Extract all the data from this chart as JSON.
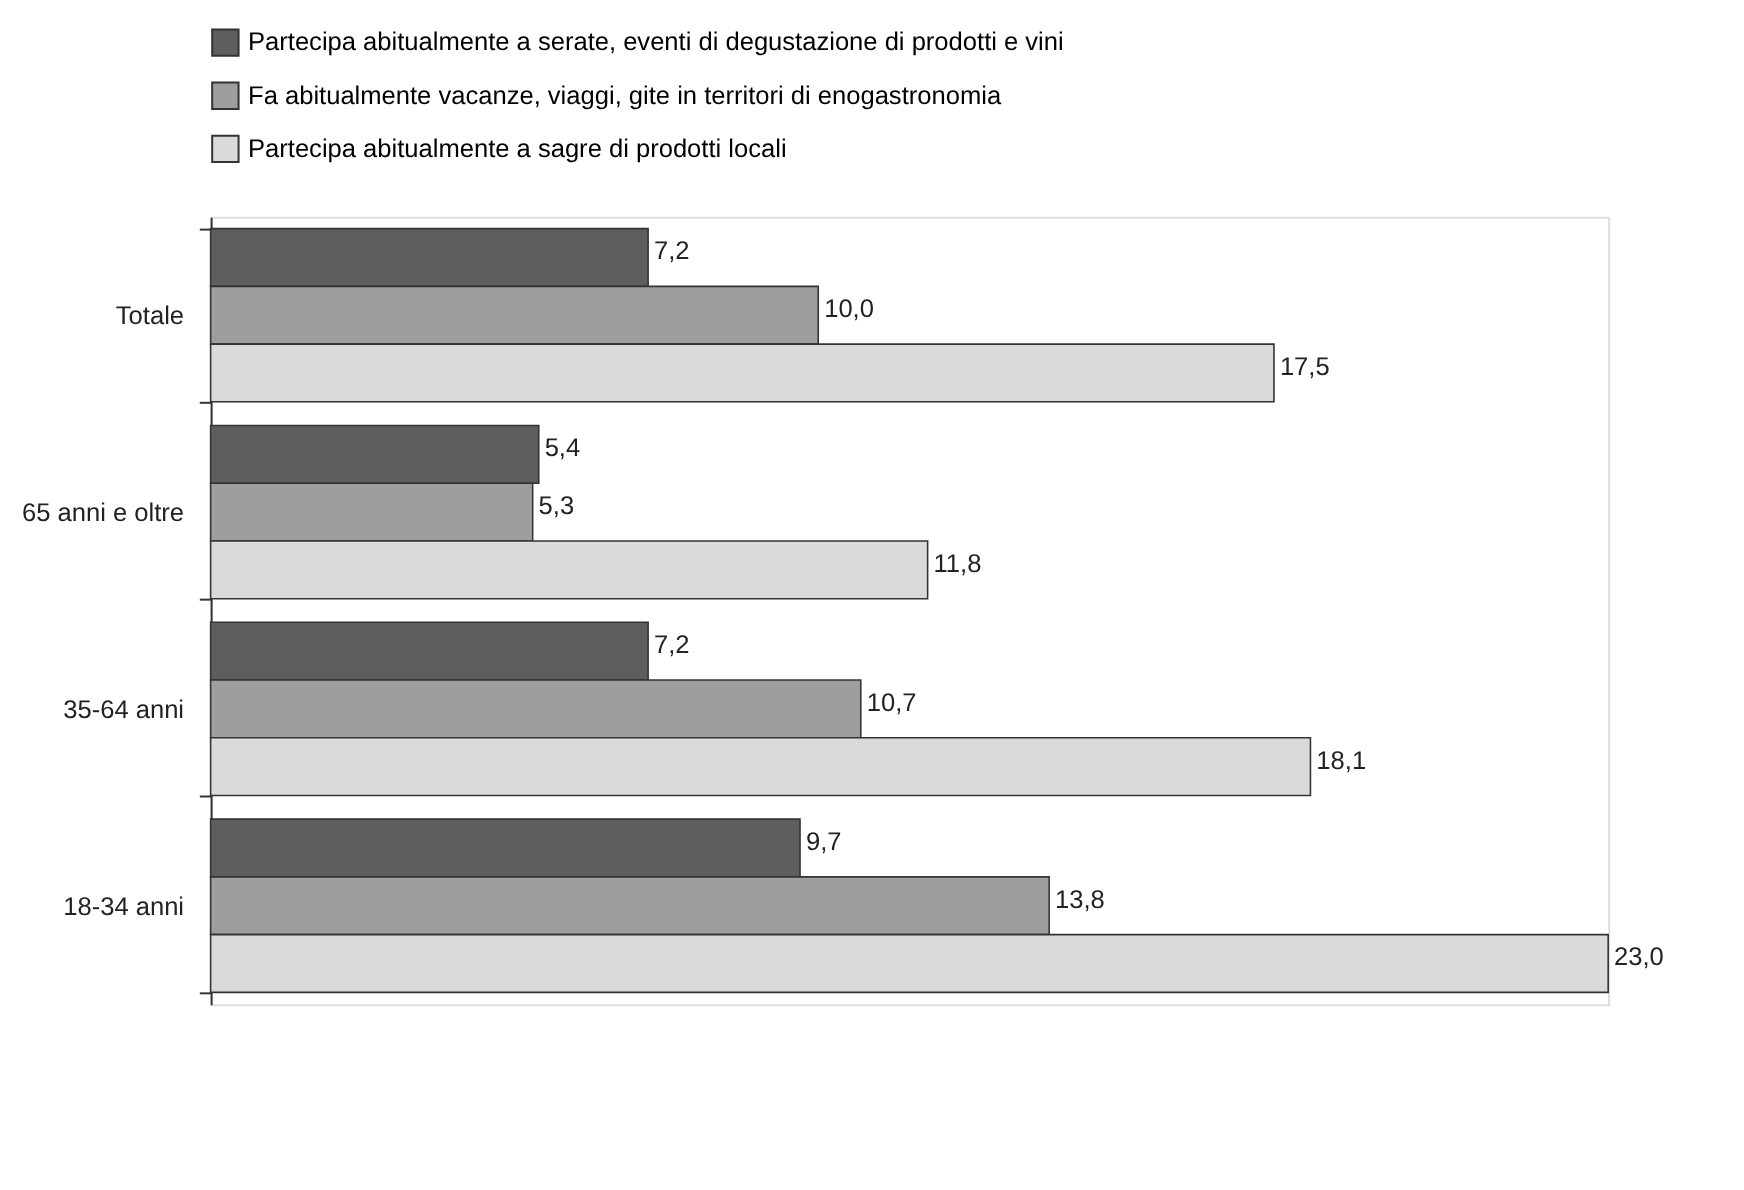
{
  "chart_data": {
    "type": "bar",
    "orientation": "horizontal",
    "categories": [
      "Totale",
      "65 anni e oltre",
      "35-64 anni",
      "18-34 anni"
    ],
    "series": [
      {
        "name": "Partecipa abitualmente a serate, eventi di degustazione di prodotti e vini",
        "color": "#5e5e5e",
        "values": [
          7.2,
          5.4,
          7.2,
          9.7
        ],
        "value_labels": [
          "7,2",
          "5,4",
          "7,2",
          "9,7"
        ]
      },
      {
        "name": "Fa abitualmente vacanze, viaggi, gite in territori di enogastronomia",
        "color": "#9e9e9e",
        "values": [
          10.0,
          5.3,
          10.7,
          13.8
        ],
        "value_labels": [
          "10,0",
          "5,3",
          "10,7",
          "13,8"
        ]
      },
      {
        "name": "Partecipa abitualmente a sagre di prodotti locali",
        "color": "#dadada",
        "values": [
          17.5,
          11.8,
          18.1,
          23.0
        ],
        "value_labels": [
          "17,5",
          "11,8",
          "18,1",
          "23,0"
        ]
      }
    ],
    "legend": "top left",
    "grid": false
  }
}
